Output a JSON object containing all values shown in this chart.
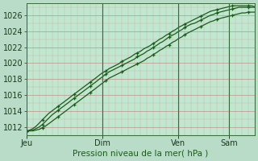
{
  "xlabel": "Pression niveau de la mer( hPa )",
  "bg_color": "#b8dcc8",
  "plot_bg_color": "#c0e8d0",
  "grid_color_major": "#c87878",
  "grid_color_minor": "#d49090",
  "line_color": "#1a5c1a",
  "ylim": [
    1011.0,
    1027.5
  ],
  "yticks": [
    1012,
    1014,
    1016,
    1018,
    1020,
    1022,
    1024,
    1026
  ],
  "day_labels": [
    "Jeu",
    "Dim",
    "Ven",
    "Sam"
  ],
  "day_positions": [
    0,
    0.333,
    0.666,
    0.888
  ],
  "total_points": 73,
  "series1_x": [
    0.0,
    0.014,
    0.028,
    0.042,
    0.056,
    0.069,
    0.083,
    0.097,
    0.111,
    0.125,
    0.139,
    0.153,
    0.167,
    0.181,
    0.194,
    0.208,
    0.222,
    0.236,
    0.25,
    0.264,
    0.278,
    0.292,
    0.306,
    0.319,
    0.333,
    0.347,
    0.361,
    0.375,
    0.389,
    0.403,
    0.417,
    0.431,
    0.444,
    0.458,
    0.472,
    0.486,
    0.5,
    0.514,
    0.528,
    0.542,
    0.556,
    0.569,
    0.583,
    0.597,
    0.611,
    0.625,
    0.639,
    0.653,
    0.667,
    0.681,
    0.694,
    0.708,
    0.722,
    0.736,
    0.75,
    0.764,
    0.778,
    0.792,
    0.806,
    0.819,
    0.833,
    0.847,
    0.861,
    0.875,
    0.889,
    0.903,
    0.917,
    0.931,
    0.944,
    0.958,
    0.972,
    0.986,
    1.0
  ],
  "series1": [
    1011.5,
    1011.6,
    1011.8,
    1012.1,
    1012.5,
    1012.9,
    1013.3,
    1013.7,
    1014.0,
    1014.3,
    1014.6,
    1014.9,
    1015.2,
    1015.5,
    1015.8,
    1016.1,
    1016.4,
    1016.7,
    1017.0,
    1017.3,
    1017.6,
    1017.9,
    1018.2,
    1018.5,
    1018.8,
    1019.0,
    1019.3,
    1019.5,
    1019.7,
    1019.9,
    1020.2,
    1020.4,
    1020.6,
    1020.8,
    1021.1,
    1021.3,
    1021.5,
    1021.8,
    1022.0,
    1022.2,
    1022.5,
    1022.7,
    1023.0,
    1023.2,
    1023.5,
    1023.7,
    1024.0,
    1024.2,
    1024.5,
    1024.7,
    1024.9,
    1025.1,
    1025.3,
    1025.5,
    1025.7,
    1025.9,
    1026.1,
    1026.3,
    1026.5,
    1026.6,
    1026.7,
    1026.8,
    1026.9,
    1027.0,
    1027.1,
    1027.2,
    1027.2,
    1027.2,
    1027.2,
    1027.2,
    1027.2,
    1027.2,
    1027.1
  ],
  "series2": [
    1011.5,
    1011.5,
    1011.6,
    1011.8,
    1012.0,
    1012.3,
    1012.7,
    1013.1,
    1013.5,
    1013.8,
    1014.1,
    1014.4,
    1014.7,
    1015.0,
    1015.3,
    1015.6,
    1015.9,
    1016.2,
    1016.5,
    1016.8,
    1017.1,
    1017.4,
    1017.7,
    1018.0,
    1018.3,
    1018.6,
    1018.9,
    1019.1,
    1019.3,
    1019.5,
    1019.7,
    1019.9,
    1020.1,
    1020.3,
    1020.5,
    1020.8,
    1021.0,
    1021.2,
    1021.5,
    1021.7,
    1022.0,
    1022.2,
    1022.5,
    1022.7,
    1023.0,
    1023.3,
    1023.5,
    1023.7,
    1024.0,
    1024.2,
    1024.5,
    1024.7,
    1024.9,
    1025.0,
    1025.2,
    1025.4,
    1025.6,
    1025.8,
    1026.0,
    1026.1,
    1026.3,
    1026.4,
    1026.5,
    1026.6,
    1026.7,
    1026.8,
    1026.9,
    1027.0,
    1027.0,
    1027.0,
    1027.0,
    1027.0,
    1027.0
  ],
  "series3": [
    1011.5,
    1011.5,
    1011.5,
    1011.6,
    1011.7,
    1011.9,
    1012.1,
    1012.4,
    1012.7,
    1013.0,
    1013.3,
    1013.6,
    1013.9,
    1014.2,
    1014.5,
    1014.8,
    1015.1,
    1015.4,
    1015.7,
    1016.0,
    1016.3,
    1016.6,
    1016.9,
    1017.2,
    1017.5,
    1017.8,
    1018.1,
    1018.3,
    1018.5,
    1018.7,
    1018.9,
    1019.1,
    1019.3,
    1019.5,
    1019.7,
    1019.9,
    1020.1,
    1020.3,
    1020.6,
    1020.8,
    1021.1,
    1021.3,
    1021.6,
    1021.8,
    1022.1,
    1022.3,
    1022.6,
    1022.8,
    1023.1,
    1023.3,
    1023.6,
    1023.8,
    1024.0,
    1024.2,
    1024.4,
    1024.6,
    1024.8,
    1025.0,
    1025.2,
    1025.3,
    1025.5,
    1025.6,
    1025.7,
    1025.8,
    1025.9,
    1026.0,
    1026.1,
    1026.2,
    1026.3,
    1026.3,
    1026.4,
    1026.4,
    1026.4
  ]
}
